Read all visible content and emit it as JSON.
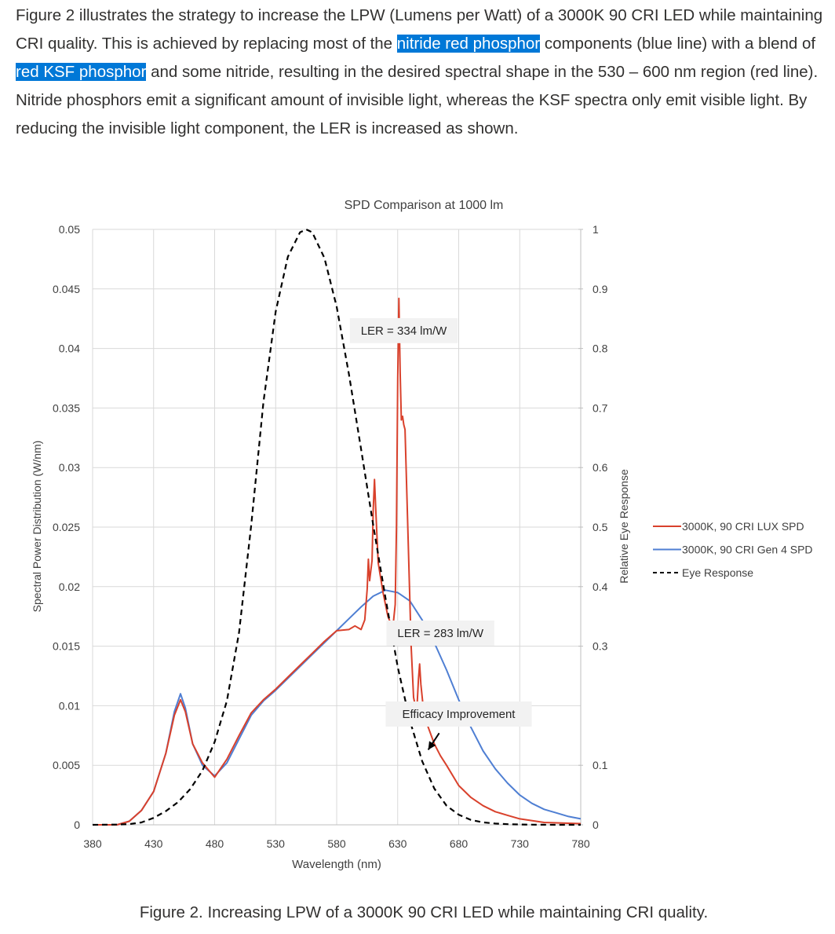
{
  "intro": {
    "text_before": "Figure 2 illustrates the strategy to increase the LPW (Lumens per Watt) of a 3000K 90 CRI LED while maintaining CRI quality. This is achieved by replacing most of the ",
    "highlight_1": "nitride red phosphor",
    "text_middle": " components (blue line) with a blend of ",
    "highlight_2": "red KSF phosphor",
    "text_after": " and some nitride, resulting in the desired spectral shape in the 530 – 600 nm region (red line). Nitride phosphors emit a significant amount of invisible light, whereas the KSF spectra only emit visible light. By reducing the invisible light component, the LER is increased as shown."
  },
  "caption": "Figure 2. Increasing LPW of a 3000K 90 CRI LED while maintaining CRI quality.",
  "colors": {
    "highlight_bg": "#0078d7",
    "lux_red": "#d9412c",
    "gen4_blue": "#4f7fd3",
    "eye_black": "#000000",
    "grid": "#d9d9d9"
  },
  "chart_data": {
    "type": "line",
    "title": "SPD Comparison at 1000 lm",
    "xlabel": "Wavelength (nm)",
    "ylabel": "Spectral Power Distribution (W/nm)",
    "y2label": "Relative Eye Response",
    "xlim": [
      380,
      780
    ],
    "ylim": [
      0,
      0.05
    ],
    "y2lim": [
      0,
      1
    ],
    "xticks": [
      "380",
      "430",
      "480",
      "530",
      "580",
      "630",
      "680",
      "730",
      "780"
    ],
    "yticks": [
      "0",
      "0.005",
      "0.01",
      "0.015",
      "0.02",
      "0.025",
      "0.03",
      "0.035",
      "0.04",
      "0.045",
      "0.05"
    ],
    "y2ticks": [
      "0",
      "0.1",
      "0.3",
      "0.4",
      "0.5",
      "0.6",
      "0.7",
      "0.8",
      "0.9",
      "1"
    ],
    "legend_position": "right",
    "series": [
      {
        "name": "3000K, 90 CRI LUX SPD",
        "axis": "left",
        "style": "solid",
        "points": [
          [
            380,
            0
          ],
          [
            400,
            0
          ],
          [
            410,
            0.0003
          ],
          [
            420,
            0.0012
          ],
          [
            430,
            0.0028
          ],
          [
            440,
            0.006
          ],
          [
            447,
            0.0092
          ],
          [
            452,
            0.0105
          ],
          [
            456,
            0.0095
          ],
          [
            462,
            0.0068
          ],
          [
            470,
            0.0052
          ],
          [
            480,
            0.004
          ],
          [
            490,
            0.0055
          ],
          [
            500,
            0.0075
          ],
          [
            510,
            0.0094
          ],
          [
            520,
            0.0105
          ],
          [
            530,
            0.0114
          ],
          [
            540,
            0.0124
          ],
          [
            550,
            0.0134
          ],
          [
            560,
            0.0144
          ],
          [
            570,
            0.0154
          ],
          [
            580,
            0.0163
          ],
          [
            590,
            0.0164
          ],
          [
            595,
            0.0167
          ],
          [
            600,
            0.0164
          ],
          [
            603,
            0.0172
          ],
          [
            605,
            0.0198
          ],
          [
            606,
            0.0223
          ],
          [
            607,
            0.0205
          ],
          [
            609,
            0.0222
          ],
          [
            610,
            0.0265
          ],
          [
            611,
            0.029
          ],
          [
            612,
            0.0265
          ],
          [
            614,
            0.022
          ],
          [
            618,
            0.0195
          ],
          [
            622,
            0.0175
          ],
          [
            626,
            0.0165
          ],
          [
            628,
            0.0185
          ],
          [
            629,
            0.025
          ],
          [
            630,
            0.0375
          ],
          [
            631,
            0.0442
          ],
          [
            632,
            0.038
          ],
          [
            633,
            0.034
          ],
          [
            634,
            0.0343
          ],
          [
            635,
            0.0336
          ],
          [
            636,
            0.0332
          ],
          [
            638,
            0.026
          ],
          [
            641,
            0.015
          ],
          [
            643,
            0.0107
          ],
          [
            645,
            0.0097
          ],
          [
            646,
            0.0102
          ],
          [
            647,
            0.0122
          ],
          [
            648,
            0.0135
          ],
          [
            649,
            0.0118
          ],
          [
            651,
            0.0098
          ],
          [
            655,
            0.0082
          ],
          [
            660,
            0.0068
          ],
          [
            665,
            0.0058
          ],
          [
            670,
            0.005
          ],
          [
            680,
            0.0033
          ],
          [
            690,
            0.0023
          ],
          [
            700,
            0.0016
          ],
          [
            710,
            0.0011
          ],
          [
            720,
            0.0008
          ],
          [
            730,
            0.0005
          ],
          [
            750,
            0.0002
          ],
          [
            780,
            0.0001
          ]
        ]
      },
      {
        "name": "3000K, 90 CRI Gen 4 SPD",
        "axis": "left",
        "style": "solid",
        "points": [
          [
            380,
            0
          ],
          [
            400,
            0
          ],
          [
            410,
            0.0003
          ],
          [
            420,
            0.0012
          ],
          [
            430,
            0.0028
          ],
          [
            440,
            0.006
          ],
          [
            447,
            0.0095
          ],
          [
            452,
            0.011
          ],
          [
            456,
            0.0098
          ],
          [
            462,
            0.0068
          ],
          [
            470,
            0.005
          ],
          [
            480,
            0.0041
          ],
          [
            490,
            0.0052
          ],
          [
            500,
            0.0072
          ],
          [
            510,
            0.0092
          ],
          [
            520,
            0.0104
          ],
          [
            530,
            0.0113
          ],
          [
            540,
            0.0123
          ],
          [
            550,
            0.0133
          ],
          [
            560,
            0.0143
          ],
          [
            570,
            0.0153
          ],
          [
            580,
            0.0163
          ],
          [
            590,
            0.0173
          ],
          [
            600,
            0.0183
          ],
          [
            610,
            0.0192
          ],
          [
            620,
            0.0197
          ],
          [
            630,
            0.0195
          ],
          [
            640,
            0.0188
          ],
          [
            650,
            0.0172
          ],
          [
            660,
            0.0153
          ],
          [
            670,
            0.013
          ],
          [
            680,
            0.0105
          ],
          [
            690,
            0.0082
          ],
          [
            700,
            0.0062
          ],
          [
            710,
            0.0047
          ],
          [
            720,
            0.0035
          ],
          [
            730,
            0.0025
          ],
          [
            740,
            0.0018
          ],
          [
            750,
            0.0013
          ],
          [
            760,
            0.001
          ],
          [
            770,
            0.0007
          ],
          [
            780,
            0.0005
          ]
        ]
      },
      {
        "name": "Eye Response",
        "axis": "right",
        "style": "dashed",
        "points": [
          [
            380,
            0
          ],
          [
            400,
            0.0004
          ],
          [
            410,
            0.0012
          ],
          [
            420,
            0.004
          ],
          [
            430,
            0.0116
          ],
          [
            440,
            0.023
          ],
          [
            450,
            0.038
          ],
          [
            460,
            0.06
          ],
          [
            470,
            0.091
          ],
          [
            480,
            0.139
          ],
          [
            490,
            0.208
          ],
          [
            500,
            0.323
          ],
          [
            510,
            0.503
          ],
          [
            520,
            0.71
          ],
          [
            530,
            0.862
          ],
          [
            540,
            0.954
          ],
          [
            550,
            0.995
          ],
          [
            555,
            1.0
          ],
          [
            560,
            0.995
          ],
          [
            570,
            0.952
          ],
          [
            580,
            0.87
          ],
          [
            590,
            0.757
          ],
          [
            600,
            0.631
          ],
          [
            610,
            0.503
          ],
          [
            620,
            0.381
          ],
          [
            630,
            0.265
          ],
          [
            640,
            0.175
          ],
          [
            650,
            0.107
          ],
          [
            660,
            0.061
          ],
          [
            670,
            0.032
          ],
          [
            680,
            0.017
          ],
          [
            690,
            0.0082
          ],
          [
            700,
            0.0041
          ],
          [
            710,
            0.0021
          ],
          [
            720,
            0.00105
          ],
          [
            730,
            0.00052
          ],
          [
            740,
            0.00025
          ],
          [
            750,
            0.00012
          ],
          [
            760,
            6e-05
          ],
          [
            770,
            3e-05
          ],
          [
            780,
            1.5e-05
          ]
        ]
      }
    ],
    "annotations": [
      {
        "text": "LER = 334 lm/W",
        "x": 635,
        "y": 0.0415
      },
      {
        "text": "LER = 283 lm/W",
        "x": 665,
        "y": 0.0161
      },
      {
        "text": "Efficacy Improvement",
        "x": 680,
        "y": 0.0093
      }
    ],
    "arrow": {
      "from": [
        664,
        0.0077
      ],
      "to": [
        655,
        0.0063
      ]
    }
  }
}
